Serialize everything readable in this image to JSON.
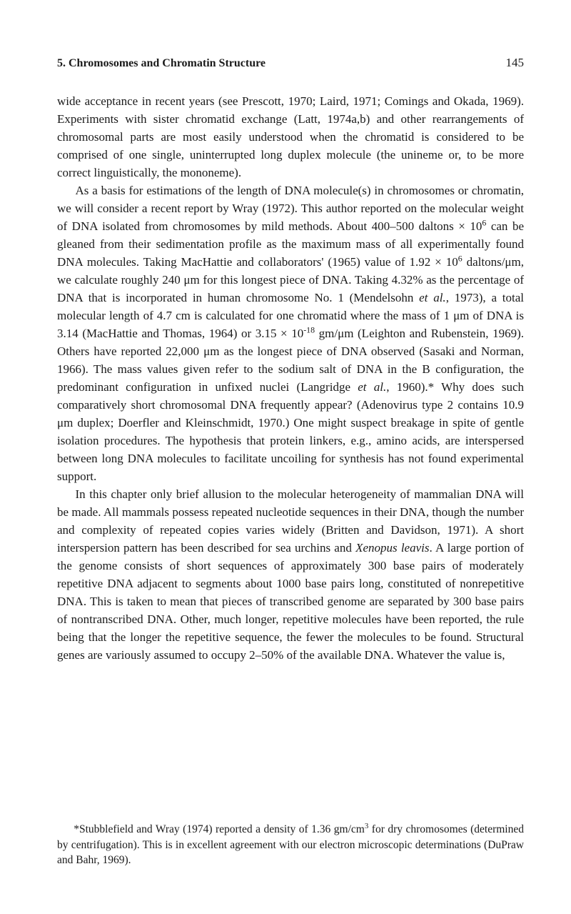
{
  "header": {
    "chapter_label": "5.  Chromosomes and Chromatin Structure",
    "page_number": "145"
  },
  "paragraphs": {
    "p1": "wide acceptance in recent years (see Prescott, 1970; Laird, 1971; Comings and Okada, 1969). Experiments with sister chromatid exchange (Latt, 1974a,b) and other rearrangements of chromosomal parts are most easily understood when the chromatid is considered to be comprised of one single, uninterrupted long duplex molecule (the unineme or, to be more correct linguistically, the mononeme).",
    "p2_a": "As a basis for estimations of the length of DNA molecule(s) in chromosomes or chromatin, we will consider a recent report by Wray (1972). This author reported on the molecular weight of DNA isolated from chromosomes by mild methods. About 400–500 daltons × 10",
    "p2_b": " can be gleaned from their sedimentation profile as the maximum mass of all experimentally found DNA molecules. Taking MacHattie and collaborators' (1965) value of 1.92 × 10",
    "p2_c": " daltons/μm, we calculate roughly 240 μm for this longest piece of DNA. Taking 4.32% as the percentage of DNA that is incorporated in human chromosome No. 1 (Mendelsohn ",
    "p2_d": ", 1973), a total molecular length of 4.7 cm is calculated for one chromatid where the mass of 1 μm of DNA is 3.14 (MacHattie and Thomas, 1964) or 3.15 × 10",
    "p2_e": " gm/μm (Leighton and Rubenstein, 1969). Others have reported 22,000 μm as the longest piece of DNA observed (Sasaki and Norman, 1966). The mass values given refer to the sodium salt of DNA in the B configuration, the predominant configuration in unfixed nuclei (Langridge ",
    "p2_f": ", 1960).* Why does such comparatively short chromosomal DNA frequently appear? (Adenovirus type 2 contains 10.9 μm duplex; Doerfler and Kleinschmidt, 1970.) One might suspect breakage in spite of gentle isolation procedures. The hypothesis that protein linkers, e.g., amino acids, are interspersed between long DNA molecules to facilitate uncoiling for synthesis has not found experimental support.",
    "p3_a": "In this chapter only brief allusion to the molecular heterogeneity of mammalian DNA will be made. All mammals possess repeated nucleotide sequences in their DNA, though the number and complexity of repeated copies varies widely (Britten and Davidson, 1971). A short interspersion pattern has been described for sea urchins and ",
    "p3_b": ". A large portion of the genome consists of short sequences of approximately 300 base pairs of moderately repetitive DNA adjacent to segments about 1000 base pairs long, constituted of nonrepetitive DNA. This is taken to mean that pieces of transcribed genome are separated by 300 base pairs of nontranscribed DNA. Other, much longer, repetitive molecules have been reported, the rule being that the longer the repetitive sequence, the fewer the molecules to be found. Structural genes are variously assumed to occupy 2–50% of the available DNA. Whatever the value is,",
    "etal": "et al.",
    "xenopus": "Xenopus leavis",
    "sup6": "6",
    "supNeg18": "-18"
  },
  "footnote": {
    "a": "*Stubblefield and Wray (1974) reported a density of 1.36 gm/cm",
    "sup3": "3",
    "b": " for dry chromosomes (determined by centrifugation). This is in excellent agreement with our electron microscopic determinations (DuPraw and Bahr, 1969)."
  }
}
